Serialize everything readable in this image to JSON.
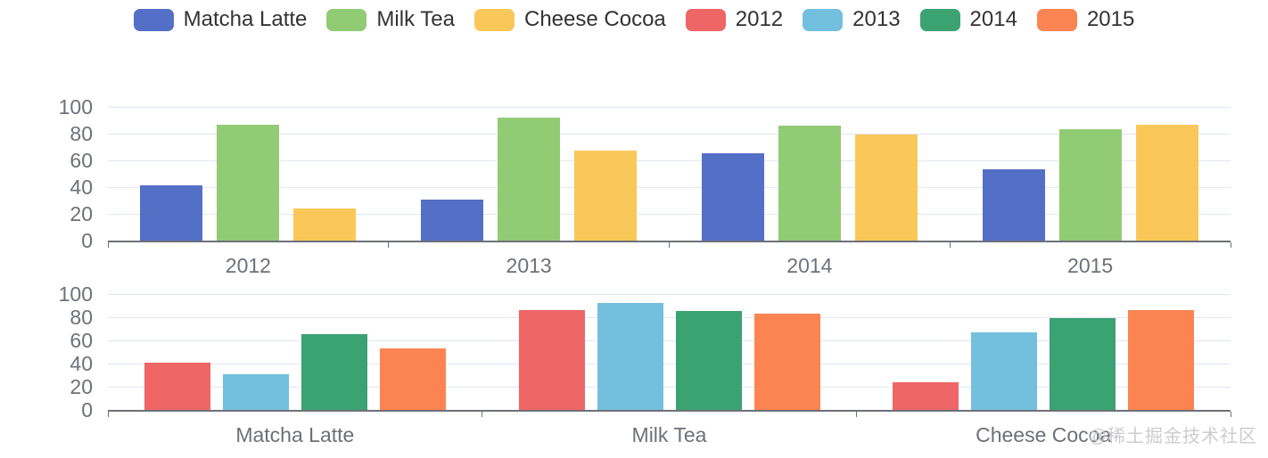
{
  "legend": {
    "items": [
      {
        "label": "Matcha Latte",
        "color": "#5470C6"
      },
      {
        "label": "Milk Tea",
        "color": "#91CC75"
      },
      {
        "label": "Cheese Cocoa",
        "color": "#FAC858"
      },
      {
        "label": "2012",
        "color": "#EE6666"
      },
      {
        "label": "2013",
        "color": "#73C0DE"
      },
      {
        "label": "2014",
        "color": "#3BA272"
      },
      {
        "label": "2015",
        "color": "#FC8452"
      }
    ]
  },
  "style": {
    "background": "#FFFFFF",
    "axis_label_color": "#6E7079",
    "axis_line_color": "#6E7079",
    "grid_line_color": "#E0E6F1",
    "legend_text_color": "#333333",
    "watermark_color": "#CCCCCC"
  },
  "watermark": "@稀土掘金技术社区",
  "chart_data": [
    {
      "type": "bar",
      "title": "",
      "xlabel": "",
      "ylabel": "",
      "categories": [
        "2012",
        "2013",
        "2014",
        "2015"
      ],
      "series": [
        {
          "name": "Matcha Latte",
          "color": "#5470C6",
          "values": [
            41.1,
            30.4,
            65.1,
            53.3
          ]
        },
        {
          "name": "Milk Tea",
          "color": "#91CC75",
          "values": [
            86.5,
            92.1,
            85.7,
            83.1
          ]
        },
        {
          "name": "Cheese Cocoa",
          "color": "#FAC858",
          "values": [
            24.1,
            67.2,
            79.5,
            86.4
          ]
        }
      ],
      "ylim": [
        0,
        100
      ],
      "yticks": [
        0,
        20,
        40,
        60,
        80,
        100
      ],
      "grid": true,
      "legend_position": "top-shared"
    },
    {
      "type": "bar",
      "title": "",
      "xlabel": "",
      "ylabel": "",
      "categories": [
        "Matcha Latte",
        "Milk Tea",
        "Cheese Cocoa"
      ],
      "series": [
        {
          "name": "2012",
          "color": "#EE6666",
          "values": [
            41.1,
            86.5,
            24.1
          ]
        },
        {
          "name": "2013",
          "color": "#73C0DE",
          "values": [
            30.4,
            92.1,
            67.2
          ]
        },
        {
          "name": "2014",
          "color": "#3BA272",
          "values": [
            65.1,
            85.7,
            79.5
          ]
        },
        {
          "name": "2015",
          "color": "#FC8452",
          "values": [
            53.3,
            83.1,
            86.4
          ]
        }
      ],
      "ylim": [
        0,
        100
      ],
      "yticks": [
        0,
        20,
        40,
        60,
        80,
        100
      ],
      "grid": true,
      "legend_position": "top-shared"
    }
  ]
}
